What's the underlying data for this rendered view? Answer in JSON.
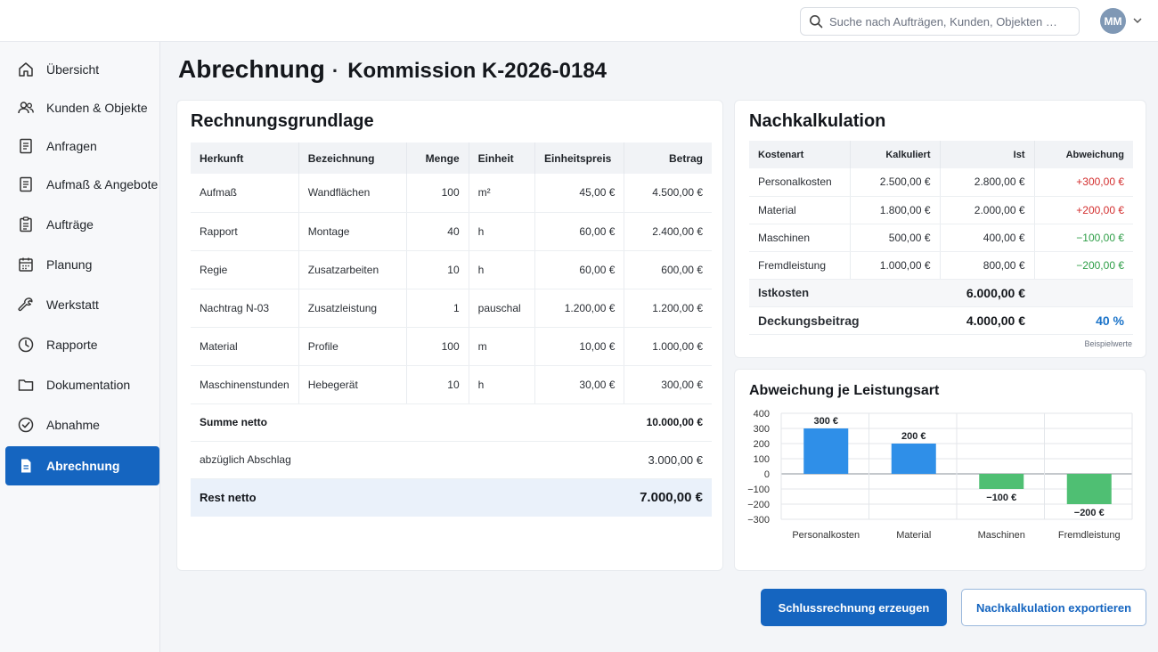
{
  "search": {
    "placeholder": "Suche nach Aufträgen, Kunden, Objekten …"
  },
  "user": {
    "initials": "MM"
  },
  "sidebar": {
    "items": [
      {
        "label": "Übersicht",
        "icon": "home-icon"
      },
      {
        "label": "Kunden & Objekte",
        "icon": "users-icon"
      },
      {
        "label": "Anfragen",
        "icon": "document-icon"
      },
      {
        "label": "Aufmaß & Angebote",
        "icon": "document-icon"
      },
      {
        "label": "Aufträge",
        "icon": "clipboard-icon"
      },
      {
        "label": "Planung",
        "icon": "calendar-icon"
      },
      {
        "label": "Werkstatt",
        "icon": "wrench-icon"
      },
      {
        "label": "Rapporte",
        "icon": "clock-icon"
      },
      {
        "label": "Dokumentation",
        "icon": "folder-icon"
      },
      {
        "label": "Abnahme",
        "icon": "check-circle-icon"
      },
      {
        "label": "Abrechnung",
        "icon": "invoice-icon",
        "active": true
      }
    ]
  },
  "header": {
    "title": "Abrechnung",
    "separator": "·",
    "subtitle": "Kommission K-2026-0184"
  },
  "rechnungsgrundlage": {
    "title": "Rechnungsgrundlage",
    "columns": [
      "Herkunft",
      "Bezeichnung",
      "Menge",
      "Einheit",
      "Einheitspreis",
      "Betrag"
    ],
    "rows": [
      [
        "Aufmaß",
        "Wandflächen",
        "100",
        "m²",
        "45,00 €",
        "4.500,00 €"
      ],
      [
        "Rapport",
        "Montage",
        "40",
        "h",
        "60,00 €",
        "2.400,00 €"
      ],
      [
        "Regie",
        "Zusatzarbeiten",
        "10",
        "h",
        "60,00 €",
        "600,00 €"
      ],
      [
        "Nachtrag N-03",
        "Zusatzleistung",
        "1",
        "pauschal",
        "1.200,00 €",
        "1.200,00 €"
      ],
      [
        "Material",
        "Profile",
        "100",
        "m",
        "10,00 €",
        "1.000,00 €"
      ],
      [
        "Maschinenstunden",
        "Hebegerät",
        "10",
        "h",
        "30,00 €",
        "300,00 €"
      ]
    ],
    "summe_label": "Summe netto",
    "summe_value": "10.000,00 €",
    "abschlag_label": "abzüglich Abschlag",
    "abschlag_value": "3.000,00 €",
    "rest_label": "Rest netto",
    "rest_value": "7.000,00 €"
  },
  "nachkalkulation": {
    "title": "Nachkalkulation",
    "columns": [
      "Kostenart",
      "Kalkuliert",
      "Ist",
      "Abweichung"
    ],
    "rows": [
      {
        "kostenart": "Personalkosten",
        "kalkuliert": "2.500,00 €",
        "ist": "2.800,00 €",
        "abweichung": "+300,00 €",
        "sign": "pos"
      },
      {
        "kostenart": "Material",
        "kalkuliert": "1.800,00 €",
        "ist": "2.000,00 €",
        "abweichung": "+200,00 €",
        "sign": "pos"
      },
      {
        "kostenart": "Maschinen",
        "kalkuliert": "500,00 €",
        "ist": "400,00 €",
        "abweichung": "−100,00 €",
        "sign": "neg"
      },
      {
        "kostenart": "Fremdleistung",
        "kalkuliert": "1.000,00 €",
        "ist": "800,00 €",
        "abweichung": "−200,00 €",
        "sign": "neg"
      }
    ],
    "istkosten_label": "Istkosten",
    "istkosten_value": "6.000,00 €",
    "deckungsbeitrag_label": "Deckungsbeitrag",
    "deckungsbeitrag_value": "4.000,00 €",
    "deckungsbeitrag_pct": "40 %",
    "note": "Beispielwerte"
  },
  "chart_data": {
    "type": "bar",
    "title": "Abweichung je Leistungsart",
    "categories": [
      "Personalkosten",
      "Material",
      "Maschinen",
      "Fremdleistung"
    ],
    "values": [
      300,
      200,
      -100,
      -200
    ],
    "data_labels": [
      "300 €",
      "200 €",
      "−100 €",
      "−200 €"
    ],
    "ylim": [
      -300,
      400
    ],
    "yticks": [
      400,
      300,
      200,
      100,
      0,
      -100,
      -200,
      -300
    ],
    "ytick_labels": [
      "400",
      "300",
      "200",
      "100",
      "0",
      "−100",
      "−200",
      "−300"
    ],
    "grid": true,
    "colors": {
      "positive": "#2f8fe8",
      "negative": "#4fbf73"
    }
  },
  "actions": {
    "primary": "Schlussrechnung erzeugen",
    "secondary": "Nachkalkulation exportieren"
  }
}
